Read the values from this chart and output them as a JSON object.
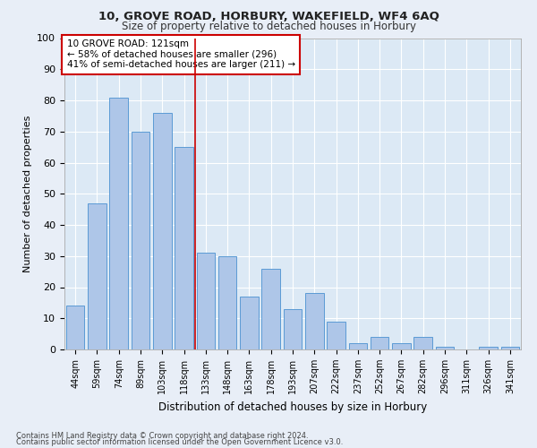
{
  "title1": "10, GROVE ROAD, HORBURY, WAKEFIELD, WF4 6AQ",
  "title2": "Size of property relative to detached houses in Horbury",
  "xlabel": "Distribution of detached houses by size in Horbury",
  "ylabel": "Number of detached properties",
  "categories": [
    "44sqm",
    "59sqm",
    "74sqm",
    "89sqm",
    "103sqm",
    "118sqm",
    "133sqm",
    "148sqm",
    "163sqm",
    "178sqm",
    "193sqm",
    "207sqm",
    "222sqm",
    "237sqm",
    "252sqm",
    "267sqm",
    "282sqm",
    "296sqm",
    "311sqm",
    "326sqm",
    "341sqm"
  ],
  "values": [
    14,
    47,
    81,
    70,
    76,
    65,
    31,
    30,
    17,
    26,
    13,
    18,
    9,
    2,
    4,
    2,
    4,
    1,
    0,
    1,
    1
  ],
  "bar_color": "#aec6e8",
  "bar_edge_color": "#5b9bd5",
  "background_color": "#dce9f5",
  "grid_color": "#ffffff",
  "fig_background": "#e8eef7",
  "vline_x": 5.5,
  "vline_color": "#cc0000",
  "annotation_text": "10 GROVE ROAD: 121sqm\n← 58% of detached houses are smaller (296)\n41% of semi-detached houses are larger (211) →",
  "annotation_box_color": "#ffffff",
  "annotation_box_edge": "#cc0000",
  "footer1": "Contains HM Land Registry data © Crown copyright and database right 2024.",
  "footer2": "Contains public sector information licensed under the Open Government Licence v3.0.",
  "ylim": [
    0,
    100
  ],
  "yticks": [
    0,
    10,
    20,
    30,
    40,
    50,
    60,
    70,
    80,
    90,
    100
  ]
}
